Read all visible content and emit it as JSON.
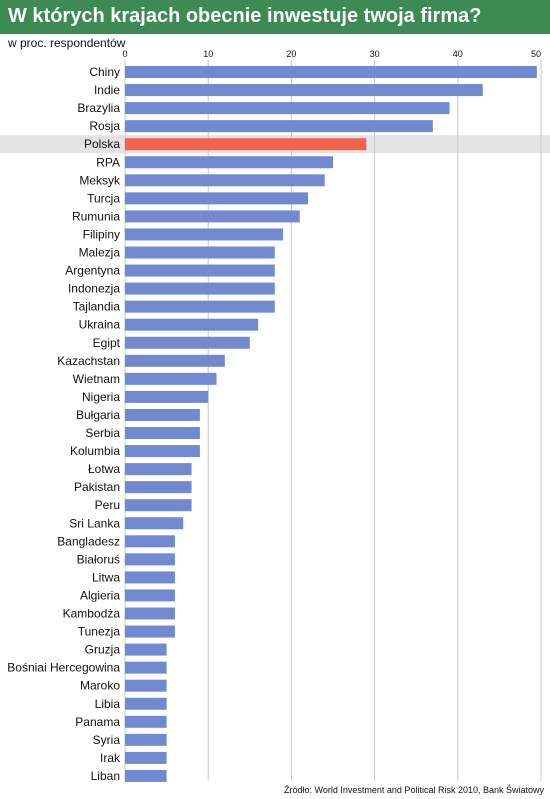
{
  "header": {
    "title": "W których krajach obecnie inwestuje twoja firma?"
  },
  "chart_data": {
    "type": "bar",
    "orientation": "horizontal",
    "unit_label": "w proc. respondentów",
    "categories": [
      "Chiny",
      "Indie",
      "Brazylia",
      "Rosja",
      "Polska",
      "RPA",
      "Meksyk",
      "Turcja",
      "Rumunia",
      "Filipiny",
      "Malezja",
      "Argentyna",
      "Indonezja",
      "Tajlandia",
      "Ukraina",
      "Egipt",
      "Kazachstan",
      "Wietnam",
      "Nigeria",
      "Bułgaria",
      "Serbia",
      "Kolumbia",
      "Łotwa",
      "Pakistan",
      "Peru",
      "Sri Lanka",
      "Bangladesz",
      "Białoruś",
      "Litwa",
      "Algieria",
      "Kambodża",
      "Tunezja",
      "Gruzja",
      "Bośniai Hercegowina",
      "Maroko",
      "Libia",
      "Panama",
      "Syria",
      "Irak",
      "Liban"
    ],
    "values": [
      49.5,
      43,
      39,
      37,
      29,
      25,
      24,
      22,
      21,
      19,
      18,
      18,
      18,
      18,
      16,
      15,
      12,
      11,
      10,
      9,
      9,
      9,
      8,
      8,
      8,
      7,
      6,
      6,
      6,
      6,
      6,
      6,
      5,
      5,
      5,
      5,
      5,
      5,
      5,
      5
    ],
    "highlight": "Polska",
    "xlim": [
      0,
      50
    ],
    "ticks": [
      0,
      10,
      20,
      30,
      40,
      50
    ],
    "tick_position": "top",
    "grid": true,
    "colors": {
      "bar": "#7089d1",
      "highlight_bar": "#f2634b",
      "highlight_band": "#e3e3e3",
      "grid": "#c8c8c8",
      "header": "#3d8a54"
    }
  },
  "footer": {
    "source": "Źródło: World Investment and Political Risk 2010, Bank Światowy"
  }
}
